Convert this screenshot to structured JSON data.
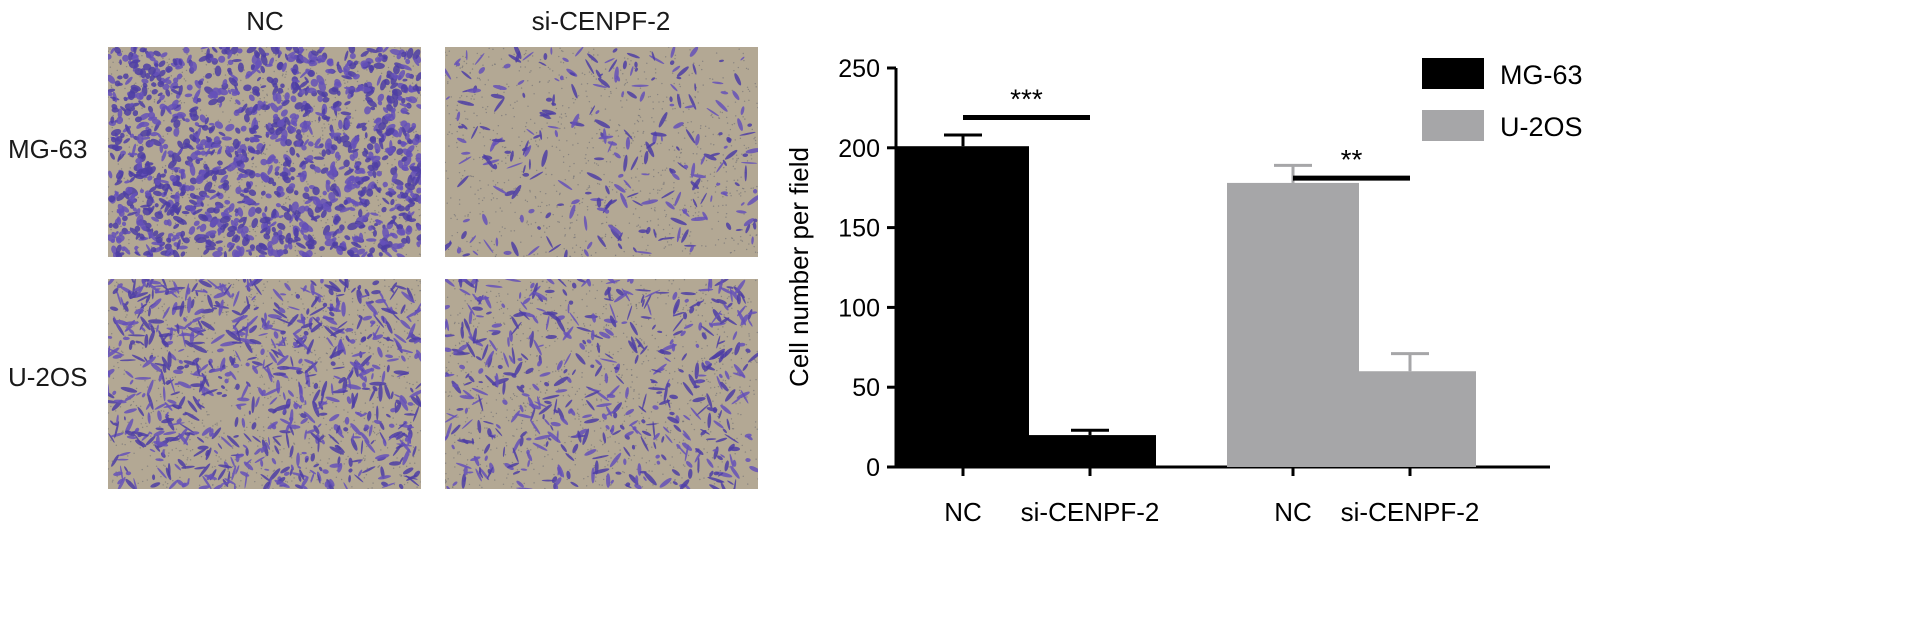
{
  "panel_a": {
    "column_labels": [
      "NC",
      "si-CENPF-2"
    ],
    "row_labels": [
      "MG-63",
      "U-2OS"
    ]
  },
  "chart_data": {
    "type": "bar",
    "ylabel": "Cell number per field",
    "xlabel": "",
    "ylim": [
      0,
      250
    ],
    "yticks": [
      0,
      50,
      100,
      150,
      200,
      250
    ],
    "groups": [
      {
        "name": "MG-63",
        "color": "#000000",
        "bars": [
          {
            "label": "NC",
            "value": 201,
            "error": 7
          },
          {
            "label": "si-CENPF-2",
            "value": 20,
            "error": 3
          }
        ],
        "significance": "***"
      },
      {
        "name": "U-2OS",
        "color": "#a6a6a8",
        "bars": [
          {
            "label": "NC",
            "value": 178,
            "error": 11
          },
          {
            "label": "si-CENPF-2",
            "value": 60,
            "error": 11
          }
        ],
        "significance": "**"
      }
    ],
    "legend": {
      "position": "top-right",
      "entries": [
        "MG-63",
        "U-2OS"
      ]
    }
  }
}
